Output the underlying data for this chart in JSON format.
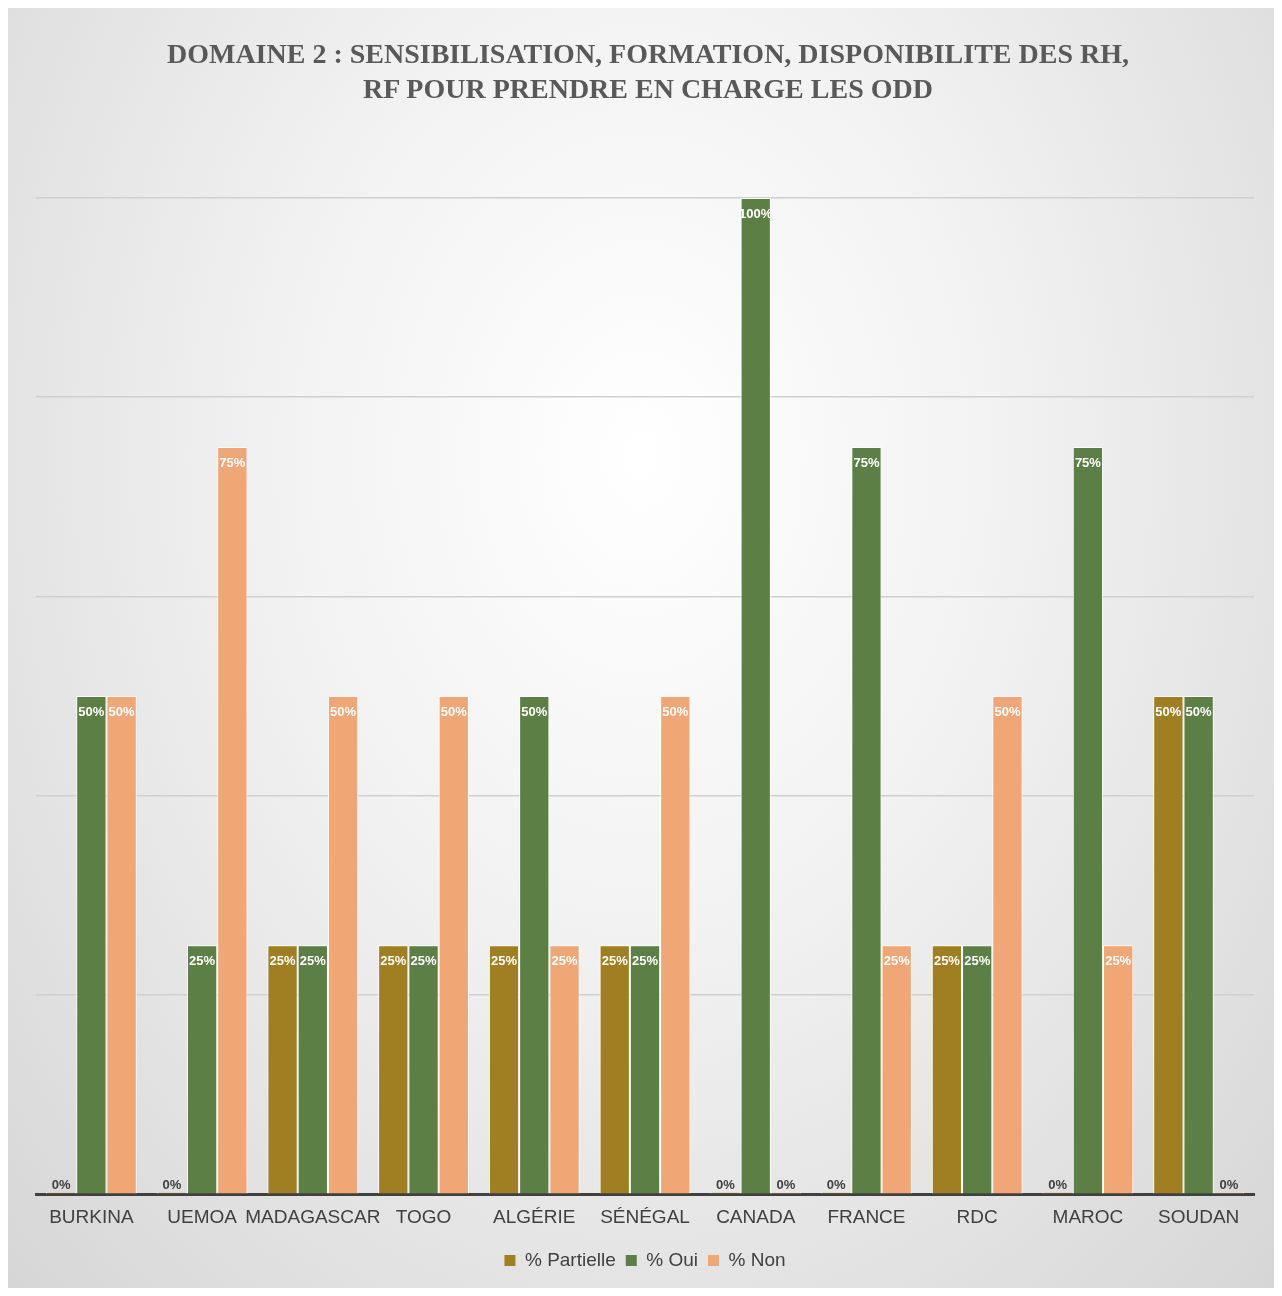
{
  "chart_data": {
    "type": "bar",
    "title": "DOMAINE 2 : SENSIBILISATION, FORMATION, DISPONIBILITE DES RH, RF POUR PRENDRE EN CHARGE LES ODD",
    "categories": [
      "BURKINA",
      "UEMOA",
      "MADAGASCAR",
      "TOGO",
      "ALGÉRIE",
      "SÉNÉGAL",
      "CANADA",
      "FRANCE",
      "RDC",
      "MAROC",
      "SOUDAN"
    ],
    "series": [
      {
        "name": "% Partielle",
        "color": "#a07f22",
        "values": [
          0,
          0,
          25,
          25,
          25,
          25,
          0,
          0,
          25,
          0,
          50
        ],
        "value_labels": [
          "0%",
          "0%",
          "25%",
          "25%",
          "25%",
          "25%",
          "0%",
          "0%",
          "25%",
          "0%",
          "50%"
        ]
      },
      {
        "name": "% Oui",
        "color": "#5b7f45",
        "values": [
          50,
          25,
          25,
          25,
          50,
          25,
          100,
          75,
          25,
          75,
          50
        ],
        "value_labels": [
          "50%",
          "25%",
          "25%",
          "25%",
          "50%",
          "25%",
          "100%",
          "75%",
          "25%",
          "75%",
          "50%"
        ]
      },
      {
        "name": "% Non",
        "color": "#f0a675",
        "values": [
          50,
          75,
          50,
          50,
          25,
          50,
          0,
          25,
          50,
          25,
          0
        ],
        "value_labels": [
          "50%",
          "75%",
          "50%",
          "50%",
          "25%",
          "50%",
          "0%",
          "25%",
          "50%",
          "25%",
          "0%"
        ]
      }
    ],
    "ylim": [
      0,
      100
    ],
    "yticks": [
      0,
      20,
      40,
      60,
      80,
      100
    ],
    "tick_labels": "x",
    "grid": "y",
    "legend": "bottom"
  }
}
